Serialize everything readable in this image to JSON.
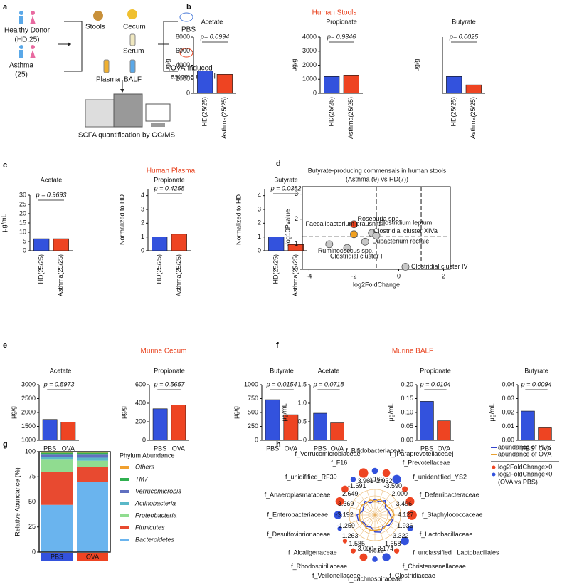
{
  "diagram": {
    "panel": "a",
    "donor": "Healthy Donor",
    "donor_n": "(HD,25)",
    "asthma": "Asthma",
    "asthma_n": "(25)",
    "stools": "Stools",
    "cecum": "Cecum",
    "serum": "Serum",
    "pbs": "PBS",
    "plasma": "Plasma",
    "balf": "BALF",
    "model_1": "OVA-induced",
    "model_2": "asthma model",
    "method": "SCFA quantification by GC/MS"
  },
  "chart_data": [
    {
      "type": "bar",
      "panel": "b",
      "group": "Human Stools",
      "title": "Acetate",
      "ylabel": "μg/g",
      "categories": [
        "HD(25/25)",
        "Asthma(25/25)"
      ],
      "values": [
        3200,
        2700
      ],
      "colors": [
        "#3352dd",
        "#ee4422"
      ],
      "ylim": [
        0,
        8000
      ],
      "yticks": [
        0,
        2000,
        4000,
        6000,
        8000
      ],
      "p": "p= 0.0994",
      "p_color": "#111111"
    },
    {
      "type": "bar",
      "title": "Propionate",
      "ylabel": "μg/g",
      "categories": [
        "HD(25/25)",
        "Asthma(25/25)"
      ],
      "values": [
        1200,
        1300
      ],
      "colors": [
        "#3352dd",
        "#ee4422"
      ],
      "ylim": [
        0,
        4000
      ],
      "yticks": [
        0,
        1000,
        2000,
        3000,
        4000
      ],
      "p": "p= 0.9346",
      "p_color": "#111111"
    },
    {
      "type": "bar",
      "title": "Butyrate",
      "ylabel": "μg/g",
      "categories": [
        "HD(25/25)",
        "Asthma(25/25)"
      ],
      "values": [
        900,
        450
      ],
      "colors": [
        "#3352dd",
        "#ee4422"
      ],
      "ylim": [
        0,
        3000
      ],
      "yticks": [],
      "p": "p= 0.0025",
      "p_color": "#e8401c"
    },
    {
      "type": "bar",
      "panel": "c",
      "group": "Human Plasma",
      "title": "Acetate",
      "ylabel": "μg/mL",
      "categories": [
        "HD(25/25)",
        "Asthma(25/25)"
      ],
      "values": [
        6.5,
        6.5
      ],
      "colors": [
        "#3352dd",
        "#ee4422"
      ],
      "ylim": [
        0,
        30
      ],
      "yticks": [
        0,
        5,
        10,
        15,
        20,
        25,
        30
      ],
      "p": "p = 0.9693",
      "p_color": "#111111"
    },
    {
      "type": "bar",
      "title": "Propionate",
      "ylabel": "Normalized to HD",
      "categories": [
        "HD(25/25)",
        "Asthma(25/25)"
      ],
      "values": [
        1.0,
        1.2
      ],
      "colors": [
        "#3352dd",
        "#ee4422"
      ],
      "ylim": [
        0,
        4.5
      ],
      "yticks": [
        0,
        1,
        2,
        3,
        4
      ],
      "p": "p = 0.4258",
      "p_color": "#111111"
    },
    {
      "type": "bar",
      "title": "Butyrate",
      "ylabel": "Normalized to HD",
      "categories": [
        "HD(25/25)",
        "Asthma(25/25)"
      ],
      "values": [
        1.0,
        0.45
      ],
      "colors": [
        "#3352dd",
        "#ee4422"
      ],
      "ylim": [
        0,
        4.5
      ],
      "yticks": [
        0,
        1,
        2,
        3,
        4
      ],
      "p": "p = 0.0382",
      "p_color": "#e8401c"
    },
    {
      "type": "bar",
      "panel": "e",
      "group": "Murine Cecum",
      "title": "Acetate",
      "ylabel": "μg/g",
      "categories": [
        "PBS",
        "OVA"
      ],
      "values": [
        1750,
        1650
      ],
      "colors": [
        "#3352dd",
        "#ee4422"
      ],
      "ylim": [
        1000,
        3000
      ],
      "yticks": [
        1000,
        1500,
        2000,
        2500,
        3000
      ],
      "p": "p = 0.5973",
      "p_color": "#111111"
    },
    {
      "type": "bar",
      "title": "Propionate",
      "ylabel": "μg/g",
      "categories": [
        "PBS",
        "OVA"
      ],
      "values": [
        340,
        380
      ],
      "colors": [
        "#3352dd",
        "#ee4422"
      ],
      "ylim": [
        0,
        600
      ],
      "yticks": [
        0,
        200,
        400,
        600
      ],
      "p": "p = 0.5657",
      "p_color": "#111111"
    },
    {
      "type": "bar",
      "title": "Butyrate",
      "ylabel": "μg/g",
      "categories": [
        "PBS",
        "OVA"
      ],
      "values": [
        730,
        460
      ],
      "colors": [
        "#3352dd",
        "#ee4422"
      ],
      "ylim": [
        0,
        1000
      ],
      "yticks": [
        0,
        250,
        500,
        750,
        1000
      ],
      "p": "p = 0.0154",
      "p_color": "#e8401c"
    },
    {
      "type": "bar",
      "panel": "f",
      "group": "Murine BALF",
      "title": "Acetate",
      "ylabel": "μg/mL",
      "categories": [
        "PBS",
        "OVA"
      ],
      "values": [
        0.73,
        0.47
      ],
      "colors": [
        "#3352dd",
        "#ee4422"
      ],
      "ylim": [
        0,
        1.5
      ],
      "yticks": [
        0,
        0.5,
        {
          "value": 1,
          "label": "1.0"
        },
        1.5
      ],
      "p": "p = 0.0718",
      "p_color": "#111111"
    },
    {
      "type": "bar",
      "title": "Propionate",
      "ylabel": "μg/mL",
      "categories": [
        "PBS",
        "OVA"
      ],
      "values": [
        0.14,
        0.07
      ],
      "colors": [
        "#3352dd",
        "#ee4422"
      ],
      "ylim": [
        0,
        0.2
      ],
      "yticks": [
        {
          "value": 0,
          "label": "0.00"
        },
        0.05,
        {
          "value": 0.1,
          "label": "0.10"
        },
        0.15,
        {
          "value": 0.2,
          "label": "0.20"
        }
      ],
      "p": "p = 0.0104",
      "p_color": "#e8401c"
    },
    {
      "type": "bar",
      "title": "Butyrate",
      "ylabel": "μg/mL",
      "categories": [
        "PBS",
        "OVA"
      ],
      "values": [
        0.021,
        0.009
      ],
      "colors": [
        "#3352dd",
        "#ee4422"
      ],
      "ylim": [
        0,
        0.04
      ],
      "yticks": [
        {
          "value": 0,
          "label": "0.00"
        },
        0.01,
        0.02,
        0.03,
        0.04
      ],
      "p": "p = 0.0094",
      "p_color": "#e8401c"
    },
    {
      "type": "scatter",
      "panel": "d",
      "title": "Butyrate-producing commensals in human stools",
      "subtitle": "(Asthma (9) vs HD(7))",
      "xlabel": "log2FoldChange",
      "ylabel": "-log10Pvalue",
      "xlim": [
        -4.3,
        2.3
      ],
      "xticks": [
        -4,
        -2,
        0,
        2
      ],
      "ylim": [
        0,
        3.3
      ],
      "yticks": [
        0,
        1,
        2,
        3
      ],
      "vlines": [
        -1,
        1
      ],
      "hline": 1.3,
      "points": [
        {
          "name": "Roseburia spp.",
          "x": -2.0,
          "y": 1.8,
          "color": "#e8401c",
          "label_color": "#e8401c"
        },
        {
          "name": "Faecalibacterium prausnitzii",
          "x": -2.0,
          "y": 1.4,
          "color": "#f0a020",
          "label_color": "#f0a020"
        },
        {
          "name": "Clostridium leptum",
          "x": -1.2,
          "y": 1.45,
          "color": "#c8c8c8",
          "label_color": "#111111"
        },
        {
          "name": "Clostridial cluster XIVa",
          "x": -1.0,
          "y": 1.35,
          "color": "#c8c8c8",
          "label_color": "#111111"
        },
        {
          "name": "Eubacterium rectale",
          "x": -1.5,
          "y": 1.1,
          "color": "#c8c8c8",
          "label_color": "#111111"
        },
        {
          "name": "Clostridial cluster I",
          "x": -2.3,
          "y": 0.85,
          "color": "#c8c8c8",
          "label_color": "#111111"
        },
        {
          "name": "Ruminococcus spp.",
          "x": -3.1,
          "y": 1.0,
          "color": "#c8c8c8",
          "label_color": "#111111"
        },
        {
          "name": "Clostridial cluster IV",
          "x": 0.3,
          "y": 0.1,
          "color": "#c8c8c8",
          "label_color": "#111111"
        }
      ]
    },
    {
      "type": "stacked_bar",
      "panel": "g",
      "ylabel": "Relative Abundance (%)",
      "legend_title": "Phylum Abundance",
      "categories": [
        "PBS",
        "OVA"
      ],
      "category_colors": [
        "#3352dd",
        "#ee4422"
      ],
      "ylim": [
        0,
        100
      ],
      "yticks": [
        0,
        25,
        50,
        75,
        100
      ],
      "series": [
        {
          "name": "Bacteroidetes",
          "color": "#6ab4ee",
          "values": [
            47,
            70
          ]
        },
        {
          "name": "Firmicutes",
          "color": "#e84a30",
          "values": [
            33,
            15
          ]
        },
        {
          "name": "Proteobacteria",
          "color": "#90dc90",
          "values": [
            12,
            6
          ]
        },
        {
          "name": "Actinobacteria",
          "color": "#5ab8c8",
          "values": [
            3,
            3
          ]
        },
        {
          "name": "Verrucomicrobia",
          "color": "#6070c0",
          "values": [
            2,
            3
          ]
        },
        {
          "name": "TM7",
          "color": "#30b050",
          "values": [
            2,
            2
          ]
        },
        {
          "name": "Others",
          "color": "#f0a030",
          "values": [
            1,
            1
          ]
        }
      ]
    },
    {
      "type": "radar",
      "panel": "h",
      "rlim": [
        0,
        1
      ],
      "pos_color": "#ee4422",
      "neg_color": "#3352dd",
      "pos_label": "log2FoldChange>0",
      "neg_label": "log2FoldChange<0",
      "note": "(OVA vs PBS)",
      "categories": [
        "f_Bifidobacteriaceae",
        "f_[Paraprevotellaceae]",
        "f_Prevotellaceae",
        "f_unidentified_YS2",
        "f_Deferribacteraceae",
        "f_Staphylococcaceae",
        "f_Lactobacillaceae",
        "f_unclassified_ Lactobacillales",
        "f_Christensenellaceae",
        "f_Clostridiaceae",
        "f_Lachnospiraceae",
        "f_Veillonellaceae",
        "f_Rhodospirillaceae",
        "f_Alcaligenaceae",
        "f_Desulfovibrionaceae",
        "f_Enterobacteriaceae",
        "f_Anaeroplasmataceae",
        "f_unidifified_RF39",
        "f_F16",
        "f_Verrucomicrobiaceae"
      ],
      "fold_change": [
        -2.162,
        2.932,
        -3.59,
        2.0,
        3.496,
        4.127,
        -1.936,
        -3.322,
        1.658,
        -3.174,
        -1.813,
        3.0,
        1.585,
        1.263,
        -1.259,
        -3.192,
        3.369,
        2.649,
        -1.691,
        3.961
      ],
      "value_labels": [
        "-2.162",
        "2.932",
        "-3.590",
        "2.000",
        "3.496",
        "4.127",
        "-1.936",
        "-3.322",
        "1.658",
        "-3.174",
        "-1.813",
        "3.000",
        "1.585",
        "1.263",
        "-1.259",
        "-3.192",
        "3.369",
        "2.649",
        "-1.691",
        "3.961"
      ],
      "series": [
        {
          "name": "abundance of PBS",
          "color": "#3344cc",
          "values": [
            0.62,
            0.55,
            0.7,
            0.5,
            0.55,
            0.6,
            0.72,
            0.68,
            0.55,
            0.7,
            0.66,
            0.5,
            0.55,
            0.52,
            0.68,
            0.7,
            0.5,
            0.55,
            0.66,
            0.5
          ]
        },
        {
          "name": "abundance of OVA",
          "color": "#e8a030",
          "values": [
            0.55,
            0.64,
            0.6,
            0.6,
            0.68,
            0.75,
            0.62,
            0.58,
            0.62,
            0.6,
            0.6,
            0.62,
            0.6,
            0.58,
            0.62,
            0.6,
            0.62,
            0.64,
            0.58,
            0.62
          ]
        }
      ]
    }
  ]
}
